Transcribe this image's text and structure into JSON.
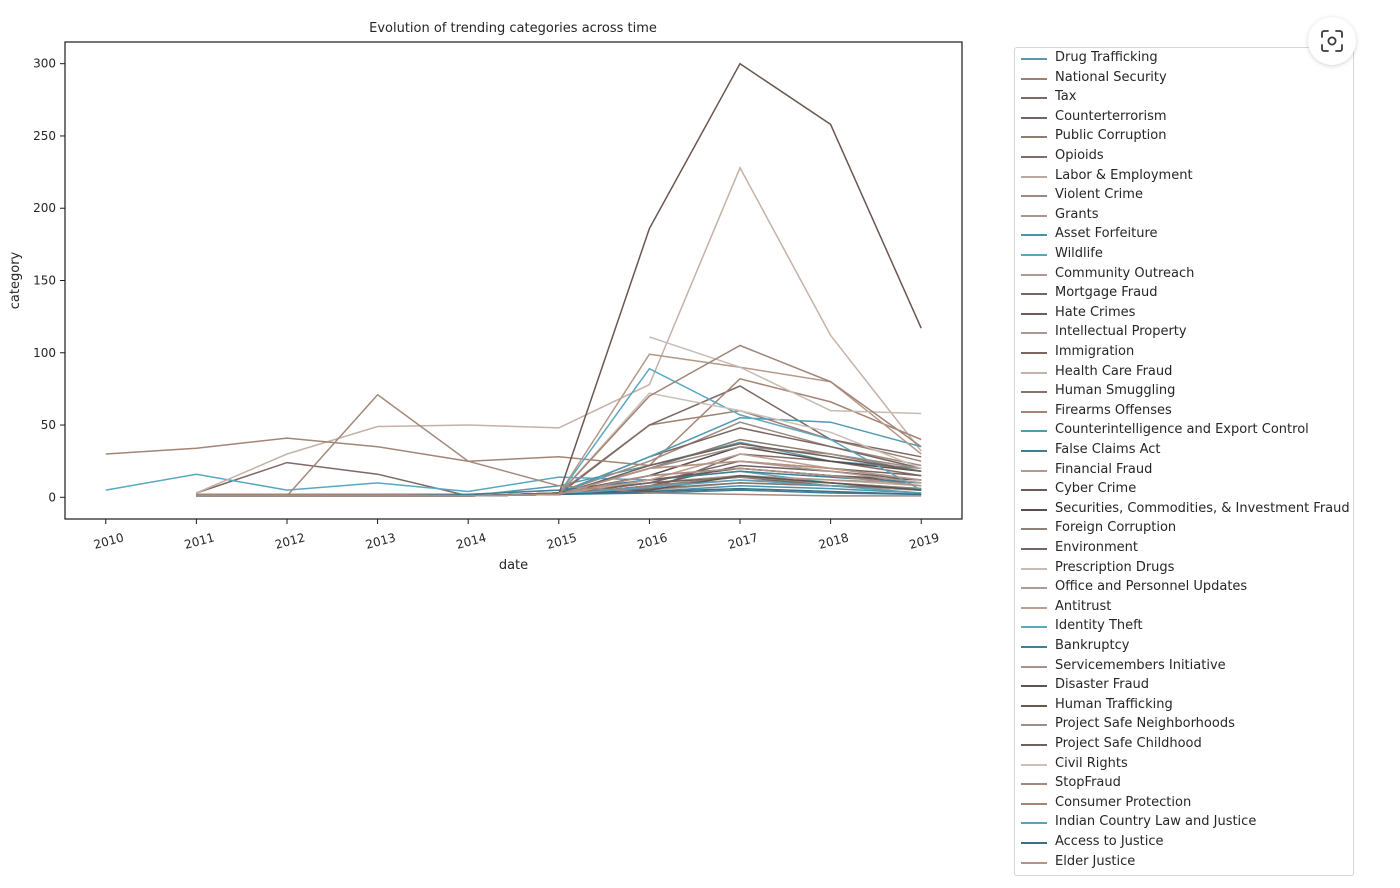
{
  "chart_data": {
    "type": "line",
    "title": "Evolution of trending categories across time",
    "xlabel": "date",
    "ylabel": "category",
    "x": [
      2010,
      2011,
      2012,
      2013,
      2014,
      2015,
      2016,
      2017,
      2018,
      2019
    ],
    "x_tick_labels": [
      "2010",
      "2011",
      "2012",
      "2013",
      "2014",
      "2015",
      "2016",
      "2017",
      "2018",
      "2019"
    ],
    "y_ticks": [
      0,
      50,
      100,
      150,
      200,
      250,
      300
    ],
    "y_tick_labels": [
      "0",
      "50",
      "100",
      "150",
      "200",
      "250",
      "300"
    ],
    "xlim": [
      2009.55,
      2019.45
    ],
    "ylim": [
      -15,
      315
    ],
    "grid": false,
    "legend_position": "outside-right",
    "series": [
      {
        "name": "Drug Trafficking",
        "color": "#5b97ad",
        "values": [
          null,
          null,
          null,
          2,
          1,
          8,
          22,
          38,
          25,
          20
        ]
      },
      {
        "name": "National Security",
        "color": "#a08070",
        "values": [
          null,
          2,
          2,
          1,
          1,
          3,
          50,
          60,
          40,
          25
        ]
      },
      {
        "name": "Tax",
        "color": "#7d6a66",
        "values": [
          null,
          3,
          24,
          16,
          1,
          2,
          50,
          77,
          40,
          28
        ]
      },
      {
        "name": "Counterterrorism",
        "color": "#73655f",
        "values": [
          null,
          2,
          2,
          2,
          1,
          2,
          15,
          20,
          15,
          10
        ]
      },
      {
        "name": "Public Corruption",
        "color": "#8e7c72",
        "values": [
          null,
          2,
          2,
          2,
          1,
          3,
          20,
          40,
          30,
          18
        ]
      },
      {
        "name": "Opioids",
        "color": "#7f6c66",
        "values": [
          null,
          null,
          null,
          null,
          null,
          null,
          5,
          30,
          25,
          15
        ]
      },
      {
        "name": "Labor & Employment",
        "color": "#b8aaa3",
        "values": [
          null,
          2,
          2,
          2,
          2,
          5,
          10,
          15,
          12,
          8
        ]
      },
      {
        "name": "Violent Crime",
        "color": "#9d8a82",
        "values": [
          null,
          2,
          2,
          2,
          1,
          3,
          25,
          52,
          35,
          22
        ]
      },
      {
        "name": "Grants",
        "color": "#a8968c",
        "values": [
          null,
          2,
          2,
          2,
          1,
          2,
          8,
          12,
          10,
          6
        ]
      },
      {
        "name": "Asset Forfeiture",
        "color": "#4a93ad",
        "values": [
          null,
          1,
          1,
          1,
          1,
          2,
          4,
          8,
          6,
          3
        ]
      },
      {
        "name": "Wildlife",
        "color": "#58a7c2",
        "values": [
          5,
          16,
          5,
          10,
          4,
          14,
          12,
          18,
          10,
          5
        ]
      },
      {
        "name": "Community Outreach",
        "color": "#b09a90",
        "values": [
          null,
          2,
          2,
          2,
          1,
          2,
          10,
          15,
          12,
          10
        ]
      },
      {
        "name": "Mortgage Fraud",
        "color": "#7a6460",
        "values": [
          null,
          2,
          2,
          2,
          1,
          2,
          10,
          14,
          8,
          5
        ]
      },
      {
        "name": "Hate Crimes",
        "color": "#6e5e5a",
        "values": [
          null,
          1,
          1,
          1,
          1,
          2,
          8,
          22,
          18,
          12
        ]
      },
      {
        "name": "Intellectual Property",
        "color": "#a59991",
        "values": [
          null,
          1,
          1,
          1,
          1,
          2,
          5,
          10,
          8,
          5
        ]
      },
      {
        "name": "Immigration",
        "color": "#7c655e",
        "values": [
          null,
          2,
          2,
          2,
          1,
          3,
          28,
          48,
          35,
          20
        ]
      },
      {
        "name": "Health Care Fraud",
        "color": "#c4b2a8",
        "values": [
          null,
          3,
          30,
          49,
          50,
          48,
          78,
          228,
          112,
          32
        ]
      },
      {
        "name": "Human Smuggling",
        "color": "#86736c",
        "values": [
          null,
          1,
          1,
          1,
          1,
          2,
          6,
          10,
          8,
          6
        ]
      },
      {
        "name": "Firearms Offenses",
        "color": "#a48575",
        "values": [
          30,
          34,
          41,
          35,
          25,
          28,
          22,
          82,
          66,
          40
        ]
      },
      {
        "name": "Counterintelligence and Export Control",
        "color": "#4f9bb3",
        "values": [
          null,
          1,
          1,
          1,
          1,
          3,
          28,
          55,
          52,
          35
        ]
      },
      {
        "name": "False Claims Act",
        "color": "#3f7f94",
        "values": [
          null,
          2,
          2,
          2,
          2,
          5,
          12,
          18,
          14,
          10
        ]
      },
      {
        "name": "Financial Fraud",
        "color": "#b5998a",
        "values": [
          null,
          1,
          1,
          1,
          1,
          2,
          99,
          90,
          80,
          30
        ]
      },
      {
        "name": "Cyber Crime",
        "color": "#6b5a55",
        "values": [
          null,
          2,
          2,
          2,
          1,
          2,
          12,
          20,
          15,
          12
        ]
      },
      {
        "name": "Securities, Commodities, & Investment Fraud",
        "color": "#5a4c48",
        "values": [
          null,
          2,
          2,
          2,
          1,
          3,
          15,
          35,
          25,
          18
        ]
      },
      {
        "name": "Foreign Corruption",
        "color": "#90817a",
        "values": [
          null,
          1,
          1,
          1,
          1,
          2,
          8,
          14,
          10,
          6
        ]
      },
      {
        "name": "Environment",
        "color": "#736560",
        "values": [
          null,
          2,
          2,
          2,
          1,
          3,
          10,
          25,
          20,
          15
        ]
      },
      {
        "name": "Prescription Drugs",
        "color": "#c8bbb3",
        "values": [
          null,
          null,
          null,
          null,
          null,
          null,
          111,
          90,
          60,
          58
        ]
      },
      {
        "name": "Office and Personnel Updates",
        "color": "#ad9e95",
        "values": [
          null,
          2,
          2,
          2,
          1,
          2,
          20,
          25,
          18,
          10
        ]
      },
      {
        "name": "Antitrust",
        "color": "#c09f92",
        "values": [
          null,
          1,
          1,
          1,
          1,
          2,
          12,
          30,
          20,
          12
        ]
      },
      {
        "name": "Identity Theft",
        "color": "#5ca8c0",
        "values": [
          null,
          1,
          1,
          1,
          1,
          2,
          89,
          57,
          40,
          5
        ]
      },
      {
        "name": "Bankruptcy",
        "color": "#3d8196",
        "values": [
          null,
          1,
          1,
          1,
          1,
          2,
          3,
          5,
          3,
          2
        ]
      },
      {
        "name": "Servicemembers Initiative",
        "color": "#ad9088",
        "values": [
          null,
          1,
          1,
          1,
          1,
          2,
          15,
          20,
          15,
          8
        ]
      },
      {
        "name": "Disaster Fraud",
        "color": "#5f5450",
        "values": [
          null,
          1,
          1,
          1,
          1,
          2,
          5,
          15,
          10,
          5
        ]
      },
      {
        "name": "Human Trafficking",
        "color": "#6b5650",
        "values": [
          null,
          1,
          1,
          1,
          1,
          2,
          186,
          300,
          258,
          117
        ]
      },
      {
        "name": "Project Safe Neighborhoods",
        "color": "#9d8e88",
        "values": [
          null,
          1,
          1,
          1,
          1,
          2,
          20,
          35,
          30,
          20
        ]
      },
      {
        "name": "Project Safe Childhood",
        "color": "#6f625d",
        "values": [
          null,
          1,
          1,
          1,
          1,
          2,
          22,
          37,
          28,
          18
        ]
      },
      {
        "name": "Civil Rights",
        "color": "#cbbfb7",
        "values": [
          null,
          1,
          1,
          1,
          1,
          2,
          72,
          60,
          45,
          20
        ]
      },
      {
        "name": "StopFraud",
        "color": "#a3897b",
        "values": [
          null,
          1,
          1,
          71,
          25,
          8,
          3,
          2,
          1,
          1
        ]
      },
      {
        "name": "Consumer Protection",
        "color": "#a38578",
        "values": [
          null,
          2,
          2,
          2,
          1,
          2,
          70,
          105,
          80,
          35
        ]
      },
      {
        "name": "Indian Country Law and Justice",
        "color": "#5aa1bc",
        "values": [
          null,
          1,
          1,
          1,
          1,
          2,
          7,
          12,
          8,
          3
        ]
      },
      {
        "name": "Access to Justice",
        "color": "#3c6f85",
        "values": [
          null,
          1,
          1,
          1,
          1,
          2,
          4,
          6,
          4,
          2
        ]
      },
      {
        "name": "Elder Justice",
        "color": "#b59283",
        "values": [
          null,
          1,
          1,
          1,
          1,
          2,
          20,
          25,
          20,
          12
        ]
      }
    ]
  }
}
